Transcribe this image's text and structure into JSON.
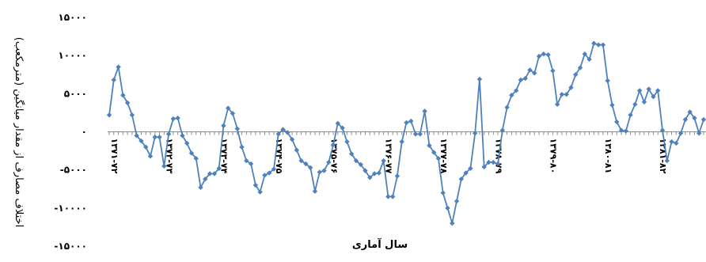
{
  "chart_data": {
    "type": "line",
    "title": "",
    "xlabel": "سال آماری",
    "ylabel": "اختلاف مصارف از مقدار میانگین (مترمکعب)",
    "ylim": [
      -15000,
      15000
    ],
    "yticks": [
      15000,
      10000,
      5000,
      0,
      -5000,
      -10000,
      -15000
    ],
    "ytick_labels": [
      "۱۵۰۰۰",
      "۱۰۰۰۰",
      "۵۰۰۰",
      "۰",
      "-۵۰۰۰",
      "-۱۰۰۰۰",
      "-۱۵۰۰۰"
    ],
    "xtick_labels": [
      {
        "i": 0,
        "label": "۱۳۷۱-۷۲"
      },
      {
        "i": 12,
        "label": "۱۳۷۲-۷۳"
      },
      {
        "i": 24,
        "label": "۱۳۷۳-۷۴"
      },
      {
        "i": 36,
        "label": "۱۳۷۴-۷۵"
      },
      {
        "i": 48,
        "label": "۱۳۷۵-۷۶"
      },
      {
        "i": 60,
        "label": "۱۳۷۶-۷۷"
      },
      {
        "i": 72,
        "label": "۱۳۷۷-۷۸"
      },
      {
        "i": 84,
        "label": "۱۳۷۸-۷۹"
      },
      {
        "i": 96,
        "label": "۱۳۷۹-۸۰"
      },
      {
        "i": 108,
        "label": "۱۳۸۰-۸۱"
      },
      {
        "i": 120,
        "label": "۱۳۸۱-۸۲"
      }
    ],
    "grid": false,
    "legend": "none",
    "color": "#4f81bd",
    "series": [
      {
        "values": [
          2200,
          6800,
          8500,
          4800,
          3800,
          2200,
          -500,
          -1200,
          -2000,
          -3200,
          -700,
          -700,
          -4500,
          -300,
          1700,
          1800,
          -500,
          -1500,
          -2800,
          -3500,
          -7300,
          -6200,
          -5500,
          -5500,
          -4800,
          800,
          3100,
          2400,
          400,
          -2000,
          -3800,
          -4200,
          -7000,
          -7900,
          -5700,
          -5400,
          -4900,
          -300,
          300,
          -100,
          -1000,
          -2400,
          -3800,
          -4200,
          -4700,
          -7800,
          -5300,
          -5100,
          -4000,
          -1700,
          1100,
          500,
          -1300,
          -2900,
          -3800,
          -4300,
          -5100,
          -6000,
          -5500,
          -5400,
          -3800,
          -8500,
          -8500,
          -5800,
          -1300,
          1200,
          1400,
          -300,
          -300,
          2700,
          -1800,
          -2700,
          -3500,
          -8000,
          -10000,
          -12000,
          -9100,
          -6200,
          -5400,
          -4800,
          -200,
          6900,
          -4600,
          -4000,
          -4000,
          -4200,
          200,
          3200,
          4800,
          5400,
          6800,
          7000,
          8100,
          7700,
          9900,
          10200,
          10100,
          8000,
          3600,
          4900,
          4900,
          5800,
          7500,
          8400,
          10200,
          9500,
          11600,
          11400,
          11400,
          6700,
          3500,
          1300,
          200,
          100,
          2200,
          3600,
          5400,
          3900,
          5600,
          4600,
          5400,
          200,
          -3800,
          -1300,
          -1500,
          -200,
          1600,
          2600,
          1800,
          -200,
          1600
        ]
      }
    ]
  }
}
